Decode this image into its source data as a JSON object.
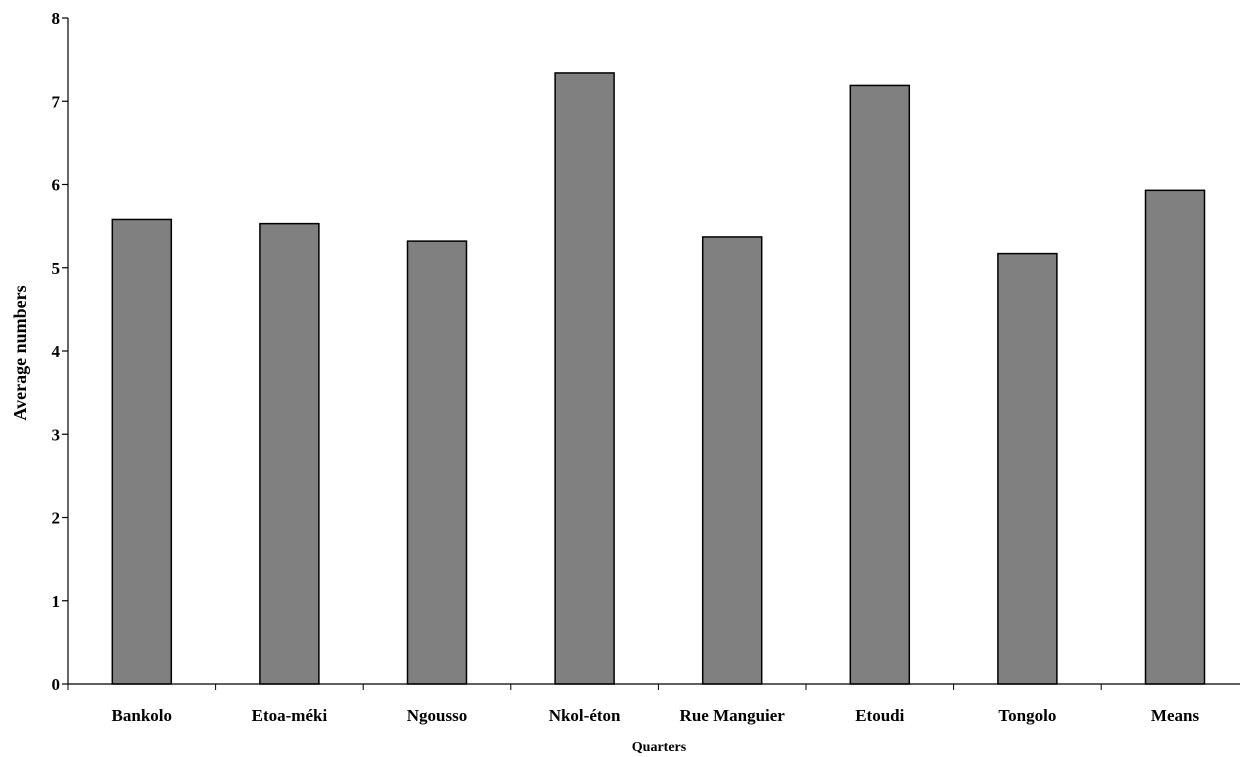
{
  "chart_data": {
    "type": "bar",
    "title": "",
    "xlabel": "Quarters",
    "ylabel": "Average numbers",
    "categories": [
      "Bankolo",
      "Etoa-méki",
      "Ngousso",
      "Nkol-éton",
      "Rue Manguier",
      "Etoudi",
      "Tongolo",
      "Means"
    ],
    "values": [
      5.58,
      5.53,
      5.32,
      7.34,
      5.37,
      7.19,
      5.17,
      5.93
    ],
    "ylim": [
      0,
      8
    ],
    "yticks": [
      0,
      1,
      2,
      3,
      4,
      5,
      6,
      7,
      8
    ],
    "grid": false,
    "legend": "none",
    "bar_color": "#808080",
    "bar_edge_color": "#000000"
  }
}
